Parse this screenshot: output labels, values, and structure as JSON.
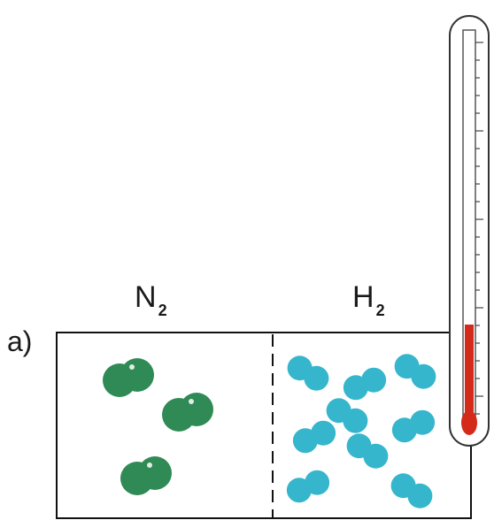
{
  "part_label": "a)",
  "gas_left": {
    "symbol": "N",
    "subscript": "2",
    "color": "#2f8a55",
    "molecule_count": 3
  },
  "gas_right": {
    "symbol": "H",
    "subscript": "2",
    "color": "#35b6cc",
    "molecule_count": 11
  },
  "thermometer": {
    "icon": "thermometer-icon",
    "liquid_color": "#d42a1a",
    "level_fraction": 0.25
  },
  "colors": {
    "container_border": "#111111",
    "divider": "#111111",
    "thermometer_outline": "#333333"
  }
}
